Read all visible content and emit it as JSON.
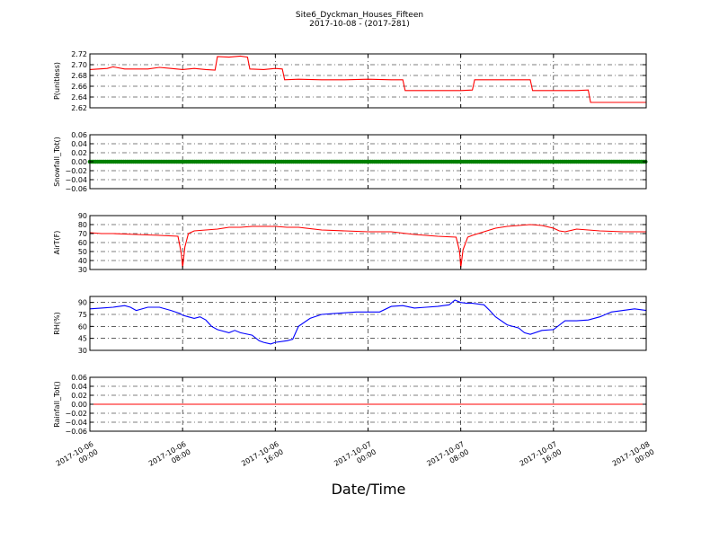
{
  "figure": {
    "title_line1": "Site6_Dyckman_Houses_Fifteen",
    "title_line2": "2017-10-08 - (2017-281)",
    "xlabel": "Date/Time"
  },
  "chart_data": [
    {
      "type": "line",
      "ylabel": "P(unitless)",
      "ylim": [
        2.62,
        2.72
      ],
      "yticks": [
        2.62,
        2.64,
        2.66,
        2.68,
        2.7,
        2.72
      ],
      "ytick_labels": [
        "2.62",
        "2.64",
        "2.66",
        "2.68",
        "2.70",
        "2.72"
      ],
      "grid": true,
      "color": "#ff0000",
      "x": [
        0.0,
        1.5,
        2.0,
        3.0,
        4.0,
        5.0,
        6.0,
        7.0,
        8.0,
        9.0,
        10.0,
        10.8,
        11.0,
        12.0,
        13.0,
        13.6,
        13.8,
        15.0,
        16.0,
        16.6,
        16.8,
        18.0,
        20.0,
        22.0,
        24.0,
        26.0,
        27.0,
        27.2,
        28.0,
        30.0,
        32.0,
        33.0,
        33.2,
        35.0,
        37.0,
        38.0,
        38.2,
        40.0,
        42.0,
        43.0,
        43.2,
        45.0,
        48.0
      ],
      "y": [
        2.691,
        2.693,
        2.696,
        2.692,
        2.692,
        2.692,
        2.695,
        2.693,
        2.691,
        2.693,
        2.691,
        2.69,
        2.715,
        2.714,
        2.716,
        2.714,
        2.692,
        2.691,
        2.693,
        2.692,
        2.672,
        2.673,
        2.672,
        2.672,
        2.673,
        2.672,
        2.672,
        2.652,
        2.652,
        2.652,
        2.652,
        2.653,
        2.672,
        2.672,
        2.672,
        2.672,
        2.652,
        2.652,
        2.652,
        2.653,
        2.63,
        2.63,
        2.63
      ]
    },
    {
      "type": "line",
      "ylabel": "Snowfall_Tot()",
      "ylim": [
        -0.06,
        0.06
      ],
      "yticks": [
        -0.06,
        -0.04,
        -0.02,
        0.0,
        0.02,
        0.04,
        0.06
      ],
      "ytick_labels": [
        "−0.06",
        "−0.04",
        "−0.02",
        "0.00",
        "0.02",
        "0.04",
        "0.06"
      ],
      "grid": true,
      "color": "#008000",
      "markers": true,
      "x": [
        0,
        48
      ],
      "y": [
        0,
        0
      ]
    },
    {
      "type": "line",
      "ylabel": "AirT(F)",
      "ylim": [
        30,
        90
      ],
      "yticks": [
        30,
        40,
        50,
        60,
        70,
        80,
        90
      ],
      "ytick_labels": [
        "30",
        "40",
        "50",
        "60",
        "70",
        "80",
        "90"
      ],
      "grid": true,
      "color": "#ff0000",
      "x": [
        0.0,
        1.0,
        2.0,
        4.0,
        6.0,
        7.6,
        7.9,
        8.0,
        8.2,
        8.5,
        9.0,
        10.0,
        11.0,
        12.0,
        13.0,
        14.0,
        15.0,
        16.0,
        17.0,
        18.0,
        20.0,
        22.0,
        24.0,
        26.0,
        28.0,
        30.0,
        31.6,
        31.9,
        32.0,
        32.2,
        32.6,
        33.0,
        34.0,
        35.0,
        36.0,
        37.0,
        38.0,
        39.0,
        40.0,
        40.5,
        41.0,
        42.0,
        44.0,
        46.0,
        48.0
      ],
      "y": [
        71,
        70,
        70,
        69,
        68,
        67,
        47,
        32,
        55,
        70,
        73,
        74,
        75,
        77,
        77,
        78,
        78,
        78,
        77,
        77,
        74,
        73,
        72,
        72,
        69,
        67,
        66,
        50,
        32,
        52,
        66,
        68,
        72,
        76,
        78,
        79,
        80,
        79,
        76,
        73,
        72,
        75,
        73,
        72,
        72
      ]
    },
    {
      "type": "line",
      "ylabel": "RH(%)",
      "ylim": [
        30,
        97.5
      ],
      "yticks": [
        30,
        45,
        60,
        75,
        90
      ],
      "ytick_labels": [
        "30",
        "45",
        "60",
        "75",
        "90"
      ],
      "grid": true,
      "color": "#0000ff",
      "x": [
        0.0,
        1.0,
        2.0,
        3.0,
        3.5,
        4.0,
        5.0,
        6.0,
        7.0,
        7.8,
        8.0,
        8.5,
        9.0,
        9.5,
        10.0,
        10.5,
        11.0,
        12.0,
        12.5,
        13.0,
        14.0,
        14.6,
        15.0,
        15.6,
        16.0,
        17.0,
        17.5,
        18.0,
        19.0,
        20.0,
        21.0,
        22.0,
        23.0,
        24.0,
        25.0,
        26.0,
        27.0,
        28.0,
        29.0,
        30.0,
        31.0,
        31.5,
        32.0,
        32.5,
        33.0,
        34.0,
        34.5,
        35.0,
        36.0,
        37.0,
        37.5,
        38.0,
        39.0,
        40.0,
        41.0,
        42.0,
        43.0,
        44.0,
        45.0,
        46.0,
        47.0,
        48.0
      ],
      "y": [
        82,
        83,
        84,
        86,
        84,
        80,
        84,
        84,
        80,
        76,
        74,
        72,
        70,
        72,
        68,
        60,
        56,
        52,
        55,
        52,
        49,
        42,
        40,
        38,
        40,
        42,
        44,
        60,
        70,
        75,
        76,
        77,
        78,
        78,
        78,
        85,
        86,
        83,
        84,
        85,
        87,
        93,
        90,
        89,
        89,
        87,
        80,
        72,
        62,
        58,
        52,
        50,
        55,
        56,
        67,
        67,
        68,
        72,
        78,
        80,
        82,
        80
      ]
    },
    {
      "type": "line",
      "ylabel": "Rainfall_Tot()",
      "ylim": [
        -0.06,
        0.06
      ],
      "yticks": [
        -0.06,
        -0.04,
        -0.02,
        0.0,
        0.02,
        0.04,
        0.06
      ],
      "ytick_labels": [
        "−0.06",
        "−0.04",
        "−0.02",
        "0.00",
        "0.02",
        "0.04",
        "0.06"
      ],
      "grid": true,
      "color": "#ff0000",
      "x": [
        0,
        48
      ],
      "y": [
        0,
        0
      ]
    }
  ],
  "x_axis": {
    "unit": "hours from 2017-10-06 00:00",
    "range": [
      0,
      48
    ],
    "ticks": [
      {
        "x": 0,
        "line1": "2017-10-06",
        "line2": "00:00"
      },
      {
        "x": 8,
        "line1": "2017-10-06",
        "line2": "08:00"
      },
      {
        "x": 16,
        "line1": "2017-10-06",
        "line2": "16:00"
      },
      {
        "x": 24,
        "line1": "2017-10-07",
        "line2": "00:00"
      },
      {
        "x": 32,
        "line1": "2017-10-07",
        "line2": "08:00"
      },
      {
        "x": 40,
        "line1": "2017-10-07",
        "line2": "16:00"
      },
      {
        "x": 48,
        "line1": "2017-10-08",
        "line2": "00:00"
      }
    ]
  }
}
